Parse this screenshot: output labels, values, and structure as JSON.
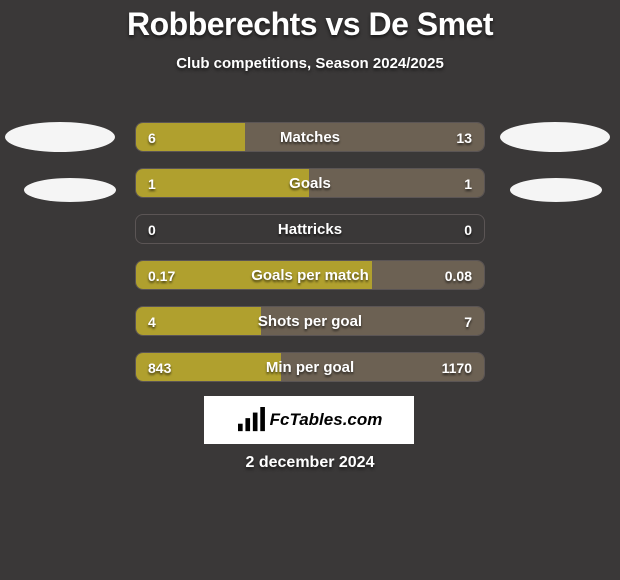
{
  "title": "Robberechts vs De Smet",
  "subtitle": "Club competitions, Season 2024/2025",
  "p1_color": "#b0a02e",
  "p2_color": "#6c6153",
  "rows": [
    {
      "label": "Matches",
      "v1": "6",
      "v2": "13",
      "n1": 6,
      "n2": 13
    },
    {
      "label": "Goals",
      "v1": "1",
      "v2": "1",
      "n1": 1,
      "n2": 1
    },
    {
      "label": "Hattricks",
      "v1": "0",
      "v2": "0",
      "n1": 0,
      "n2": 0
    },
    {
      "label": "Goals per match",
      "v1": "0.17",
      "v2": "0.08",
      "n1": 0.17,
      "n2": 0.08
    },
    {
      "label": "Shots per goal",
      "v1": "4",
      "v2": "7",
      "n1": 4,
      "n2": 7
    },
    {
      "label": "Min per goal",
      "v1": "843",
      "v2": "1170",
      "n1": 843,
      "n2": 1170
    }
  ],
  "bar_total_width": 350,
  "logo_text": "FcTables.com",
  "date": "2 december 2024"
}
